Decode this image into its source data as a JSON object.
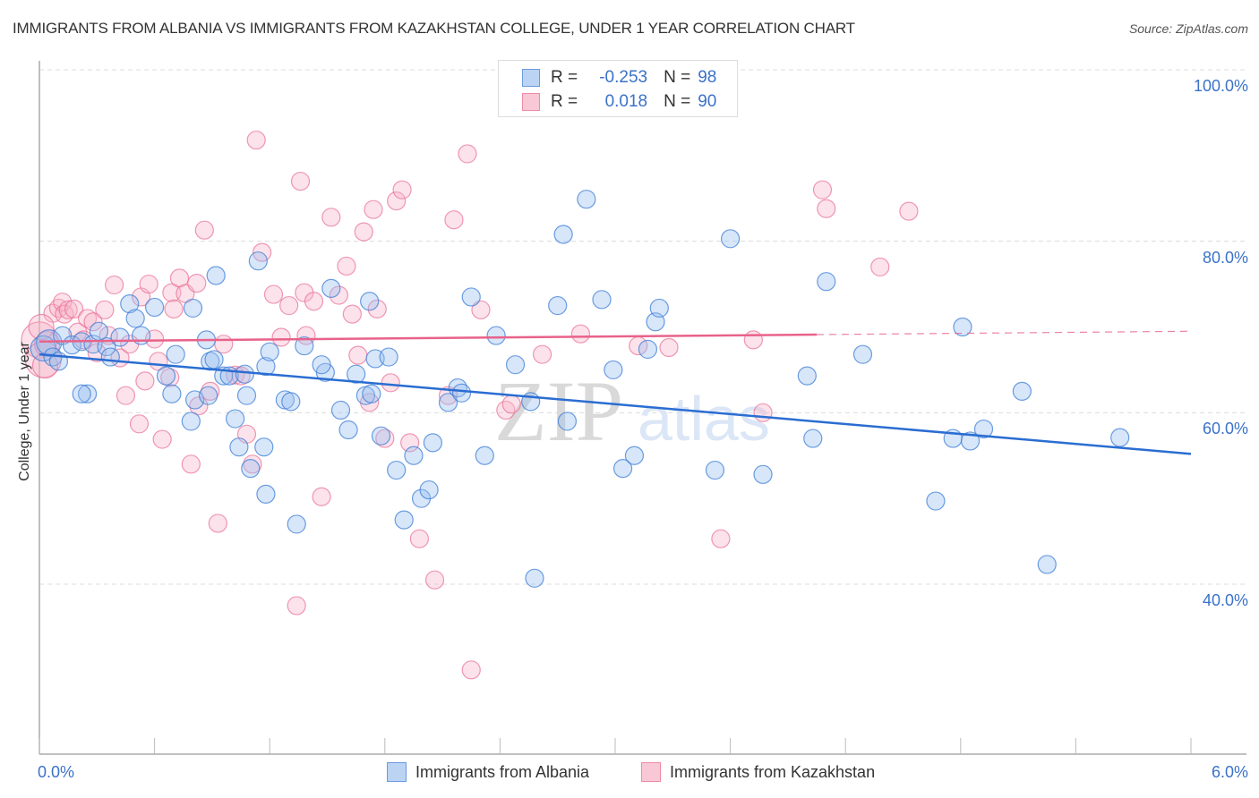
{
  "header": {
    "title": "IMMIGRANTS FROM ALBANIA VS IMMIGRANTS FROM KAZAKHSTAN COLLEGE, UNDER 1 YEAR CORRELATION CHART",
    "source": "Source: ZipAtlas.com"
  },
  "legend": {
    "rows": [
      {
        "r_label": "R =",
        "r_value": "-0.253",
        "n_label": "N =",
        "n_value": "98"
      },
      {
        "r_label": "R =",
        "r_value": "0.018",
        "n_label": "N =",
        "n_value": "90"
      }
    ]
  },
  "watermark": {
    "part1": "ZIP",
    "part2": "atlas"
  },
  "chart_data": {
    "type": "scatter",
    "title": "IMMIGRANTS FROM ALBANIA VS IMMIGRANTS FROM KAZAKHSTAN COLLEGE, UNDER 1 YEAR CORRELATION CHART",
    "xlabel": "",
    "ylabel": "College, Under 1 year",
    "xlim": [
      0,
      6
    ],
    "ylim": [
      18,
      102
    ],
    "x_tick_labels": [
      "0.0%",
      "6.0%"
    ],
    "y_ticks": [
      40,
      60,
      80,
      100
    ],
    "y_tick_labels": [
      "40.0%",
      "60.0%",
      "80.0%",
      "100.0%"
    ],
    "grid": true,
    "legend_position": "bottom",
    "colors": {
      "albania": "#6a9ae0",
      "kazakhstan": "#f08aa8",
      "albania_line": "#2a6dd2",
      "kazakhstan_line": "#e8628a"
    },
    "series": [
      {
        "name": "Immigrants from Albania",
        "R": -0.253,
        "N": 98,
        "trend": {
          "x0": 0,
          "y0": 66.8,
          "x1": 6,
          "y1": 55.2,
          "solid_until": 6
        },
        "points": [
          [
            0.02,
            67.5
          ],
          [
            0.05,
            68.2
          ],
          [
            0.07,
            66.5
          ],
          [
            0.1,
            66.0
          ],
          [
            0.12,
            69.0
          ],
          [
            0.17,
            67.9
          ],
          [
            0.22,
            68.3
          ],
          [
            0.28,
            68.0
          ],
          [
            0.35,
            67.7
          ],
          [
            0.42,
            68.8
          ],
          [
            0.25,
            62.2
          ],
          [
            0.22,
            62.2
          ],
          [
            0.31,
            69.5
          ],
          [
            0.37,
            66.5
          ],
          [
            0.47,
            72.7
          ],
          [
            0.5,
            71.0
          ],
          [
            0.53,
            69.0
          ],
          [
            0.6,
            72.3
          ],
          [
            0.66,
            64.3
          ],
          [
            0.69,
            62.2
          ],
          [
            0.71,
            66.8
          ],
          [
            0.8,
            72.2
          ],
          [
            0.87,
            68.5
          ],
          [
            0.92,
            76.0
          ],
          [
            0.79,
            59.0
          ],
          [
            0.81,
            61.5
          ],
          [
            0.88,
            62.0
          ],
          [
            0.89,
            66.0
          ],
          [
            0.91,
            66.2
          ],
          [
            0.96,
            64.3
          ],
          [
            0.99,
            64.3
          ],
          [
            1.02,
            59.3
          ],
          [
            1.04,
            56.0
          ],
          [
            1.1,
            53.5
          ],
          [
            1.18,
            65.4
          ],
          [
            1.14,
            77.7
          ],
          [
            1.2,
            67.1
          ],
          [
            1.07,
            64.5
          ],
          [
            1.08,
            62.0
          ],
          [
            1.17,
            56.0
          ],
          [
            1.18,
            50.5
          ],
          [
            1.28,
            61.5
          ],
          [
            1.31,
            61.3
          ],
          [
            1.34,
            47.0
          ],
          [
            1.38,
            67.8
          ],
          [
            1.49,
            64.7
          ],
          [
            1.52,
            74.5
          ],
          [
            1.47,
            65.6
          ],
          [
            1.57,
            60.3
          ],
          [
            1.61,
            58.0
          ],
          [
            1.65,
            64.5
          ],
          [
            1.7,
            62.0
          ],
          [
            1.72,
            73.0
          ],
          [
            1.75,
            66.3
          ],
          [
            1.73,
            62.2
          ],
          [
            1.78,
            57.3
          ],
          [
            1.82,
            66.5
          ],
          [
            1.86,
            53.3
          ],
          [
            1.9,
            47.5
          ],
          [
            1.95,
            55.0
          ],
          [
            1.99,
            50.0
          ],
          [
            2.03,
            51.0
          ],
          [
            2.05,
            56.5
          ],
          [
            2.13,
            61.2
          ],
          [
            2.18,
            62.9
          ],
          [
            2.2,
            62.3
          ],
          [
            2.25,
            73.5
          ],
          [
            2.32,
            55.0
          ],
          [
            2.38,
            69.0
          ],
          [
            2.48,
            65.6
          ],
          [
            2.58,
            40.7
          ],
          [
            2.56,
            61.3
          ],
          [
            2.75,
            59.0
          ],
          [
            2.73,
            80.8
          ],
          [
            2.7,
            72.5
          ],
          [
            2.85,
            84.9
          ],
          [
            2.93,
            73.2
          ],
          [
            2.99,
            65.0
          ],
          [
            3.04,
            53.5
          ],
          [
            3.1,
            55.0
          ],
          [
            3.17,
            67.4
          ],
          [
            3.21,
            70.6
          ],
          [
            3.23,
            72.2
          ],
          [
            3.52,
            53.3
          ],
          [
            3.6,
            80.3
          ],
          [
            3.77,
            52.8
          ],
          [
            4.0,
            64.3
          ],
          [
            4.03,
            57.0
          ],
          [
            4.1,
            75.3
          ],
          [
            4.29,
            66.8
          ],
          [
            4.67,
            49.7
          ],
          [
            4.76,
            57.0
          ],
          [
            4.81,
            70.0
          ],
          [
            4.85,
            56.7
          ],
          [
            4.92,
            58.1
          ],
          [
            5.12,
            62.5
          ],
          [
            5.25,
            42.3
          ],
          [
            5.63,
            57.1
          ]
        ]
      },
      {
        "name": "Immigrants from Kazakhstan",
        "R": 0.018,
        "N": 90,
        "trend": {
          "x0": 0,
          "y0": 68.3,
          "x1": 6,
          "y1": 69.5,
          "solid_until": 4.05
        },
        "points": [
          [
            0.0,
            68.5
          ],
          [
            0.02,
            66.2
          ],
          [
            0.04,
            68.0
          ],
          [
            0.07,
            71.6
          ],
          [
            0.1,
            72.2
          ],
          [
            0.12,
            72.9
          ],
          [
            0.13,
            71.5
          ],
          [
            0.15,
            72.0
          ],
          [
            0.18,
            72.1
          ],
          [
            0.2,
            69.4
          ],
          [
            0.23,
            68.5
          ],
          [
            0.25,
            71.0
          ],
          [
            0.28,
            70.6
          ],
          [
            0.3,
            67.0
          ],
          [
            0.34,
            72.0
          ],
          [
            0.36,
            69.0
          ],
          [
            0.39,
            74.9
          ],
          [
            0.42,
            66.4
          ],
          [
            0.45,
            62.0
          ],
          [
            0.47,
            68.0
          ],
          [
            0.52,
            58.7
          ],
          [
            0.53,
            73.5
          ],
          [
            0.55,
            63.7
          ],
          [
            0.57,
            75.0
          ],
          [
            0.6,
            68.6
          ],
          [
            0.62,
            66.0
          ],
          [
            0.64,
            56.9
          ],
          [
            0.68,
            64.1
          ],
          [
            0.69,
            74.0
          ],
          [
            0.7,
            72.1
          ],
          [
            0.73,
            75.7
          ],
          [
            0.76,
            73.9
          ],
          [
            0.79,
            54.0
          ],
          [
            0.82,
            75.1
          ],
          [
            0.83,
            60.8
          ],
          [
            0.86,
            81.3
          ],
          [
            0.89,
            62.5
          ],
          [
            0.93,
            47.1
          ],
          [
            0.96,
            68.0
          ],
          [
            1.02,
            64.4
          ],
          [
            1.05,
            64.3
          ],
          [
            1.08,
            57.5
          ],
          [
            1.11,
            54.0
          ],
          [
            1.13,
            91.8
          ],
          [
            1.16,
            78.7
          ],
          [
            1.22,
            73.8
          ],
          [
            1.26,
            68.8
          ],
          [
            1.3,
            72.5
          ],
          [
            1.34,
            37.5
          ],
          [
            1.36,
            87.0
          ],
          [
            1.38,
            74.0
          ],
          [
            1.39,
            69.0
          ],
          [
            1.43,
            73.0
          ],
          [
            1.47,
            50.2
          ],
          [
            1.52,
            82.8
          ],
          [
            1.56,
            73.7
          ],
          [
            1.6,
            77.1
          ],
          [
            1.63,
            71.5
          ],
          [
            1.66,
            66.7
          ],
          [
            1.69,
            81.1
          ],
          [
            1.72,
            61.2
          ],
          [
            1.74,
            83.7
          ],
          [
            1.76,
            72.1
          ],
          [
            1.8,
            57.0
          ],
          [
            1.83,
            63.5
          ],
          [
            1.86,
            84.7
          ],
          [
            1.89,
            86.0
          ],
          [
            1.93,
            56.5
          ],
          [
            1.98,
            45.3
          ],
          [
            2.06,
            40.5
          ],
          [
            2.13,
            62.0
          ],
          [
            2.16,
            82.5
          ],
          [
            2.23,
            90.2
          ],
          [
            2.25,
            30.0
          ],
          [
            2.3,
            72.0
          ],
          [
            2.43,
            60.3
          ],
          [
            2.46,
            61.0
          ],
          [
            2.62,
            66.8
          ],
          [
            2.82,
            69.2
          ],
          [
            3.12,
            67.8
          ],
          [
            3.28,
            67.6
          ],
          [
            3.55,
            45.3
          ],
          [
            3.72,
            68.5
          ],
          [
            3.77,
            60.0
          ],
          [
            4.08,
            86.0
          ],
          [
            4.1,
            83.8
          ],
          [
            4.38,
            77.0
          ],
          [
            4.53,
            83.5
          ],
          [
            0.01,
            70.0
          ],
          [
            0.03,
            65.5
          ]
        ]
      }
    ]
  }
}
